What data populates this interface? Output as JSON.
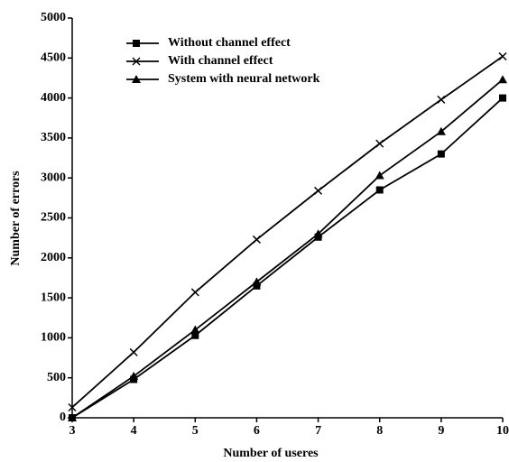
{
  "chart_data": {
    "type": "line",
    "x_label": "Number of useres",
    "y_label": "Number of errors",
    "x": [
      3,
      4,
      5,
      6,
      7,
      8,
      9,
      10
    ],
    "series": [
      {
        "name": "Without channel effect",
        "color": "#000000",
        "marker": "square",
        "values": [
          0,
          480,
          1030,
          1650,
          2260,
          2850,
          3300,
          4000
        ]
      },
      {
        "name": "With channel effect",
        "color": "#000000",
        "marker": "x",
        "values": [
          130,
          820,
          1570,
          2230,
          2840,
          3430,
          3980,
          4520
        ]
      },
      {
        "name": "System with neural network",
        "color": "#000000",
        "marker": "triangle",
        "values": [
          0,
          520,
          1100,
          1700,
          2300,
          3030,
          3580,
          4230
        ]
      }
    ],
    "xlim": [
      3,
      10
    ],
    "xticks": [
      3,
      4,
      5,
      6,
      7,
      8,
      9,
      10
    ],
    "ylim": [
      0,
      5000
    ],
    "yticks": [
      0,
      500,
      1000,
      1500,
      2000,
      2500,
      3000,
      3500,
      4000,
      4500,
      5000
    ],
    "grid": false,
    "legend": "upper left"
  }
}
